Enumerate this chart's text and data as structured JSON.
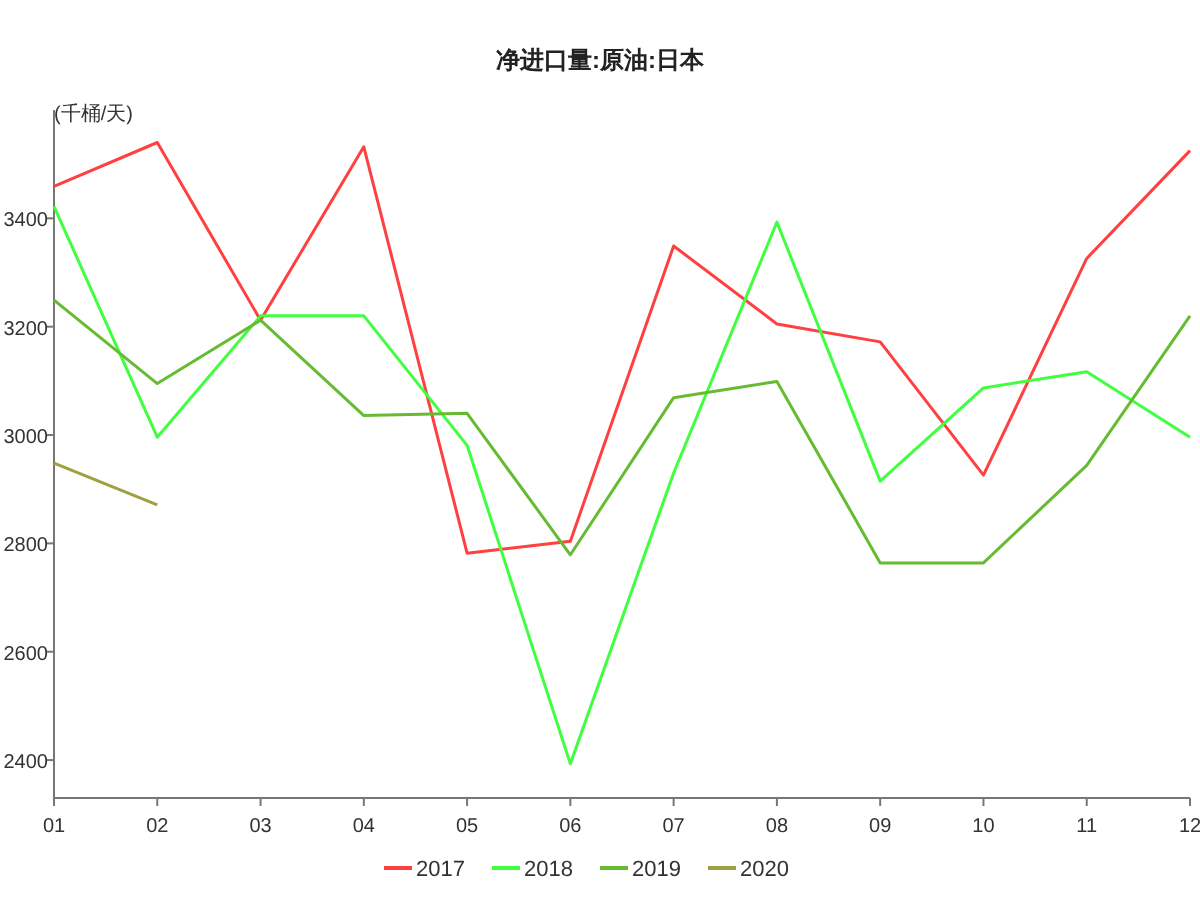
{
  "chart_data": {
    "type": "line",
    "title": "净进口量:原油:日本",
    "ylabel": "(千桶/天)",
    "categories": [
      "01",
      "02",
      "03",
      "04",
      "05",
      "06",
      "07",
      "08",
      "09",
      "10",
      "11",
      "12"
    ],
    "series": [
      {
        "name": "2017",
        "color": "#ff4040",
        "values": [
          3459,
          3540,
          3212,
          3532,
          2782,
          2804,
          3349,
          3205,
          3172,
          2926,
          3326,
          3525
        ]
      },
      {
        "name": "2018",
        "color": "#40ff40",
        "values": [
          3422,
          2996,
          3220,
          3220,
          2981,
          2393,
          2930,
          3393,
          2915,
          3087,
          3117,
          2996
        ]
      },
      {
        "name": "2019",
        "color": "#66bb33",
        "values": [
          3249,
          3095,
          3212,
          3036,
          3040,
          2779,
          3069,
          3099,
          2764,
          2764,
          2944,
          3220
        ]
      },
      {
        "name": "2020",
        "color": "#a0a040",
        "values": [
          2948,
          2871,
          null,
          null,
          null,
          null,
          null,
          null,
          null,
          null,
          null,
          null
        ]
      }
    ],
    "ylim": [
      2330,
      3600
    ],
    "yticks": [
      2400,
      2600,
      2800,
      3000,
      3200,
      3400
    ],
    "legend": "bottom"
  }
}
